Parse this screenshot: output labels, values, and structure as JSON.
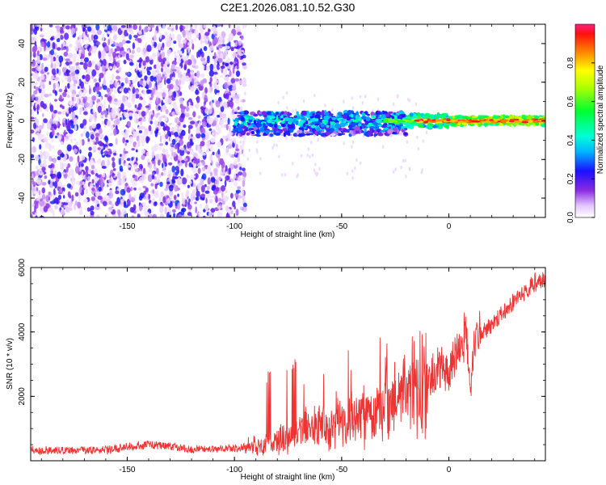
{
  "title": "C2E1.2026.081.10.52.G30",
  "chart_data": [
    {
      "type": "heatmap",
      "name": "spectrogram",
      "xlabel": "Height of straight line (km)",
      "ylabel": "Frequency (Hz)",
      "xlim": [
        -195,
        45
      ],
      "ylim": [
        -50,
        50
      ],
      "x_ticks": [
        -150,
        -100,
        -50,
        0
      ],
      "y_ticks": [
        -40,
        -20,
        0,
        20,
        40
      ],
      "colorbar": {
        "label": "Normalized spectral amplitude",
        "range": [
          0,
          1
        ],
        "ticks": [
          0.0,
          0.2,
          0.4,
          0.6,
          0.8
        ]
      },
      "regions": [
        {
          "x_range": [
            -195,
            -95
          ],
          "freq_range": [
            -50,
            50
          ],
          "description_amplitude": "low (0.05-0.2), scattered noise"
        },
        {
          "x_range": [
            -100,
            -15
          ],
          "freq_range": [
            -8,
            5
          ],
          "description_amplitude": "0.2-0.5 clustered signal"
        },
        {
          "x_range": [
            -15,
            45
          ],
          "freq_range": [
            -3,
            3
          ],
          "description_amplitude": "0.6-1.0 strong tone near 0 Hz"
        }
      ]
    },
    {
      "type": "line",
      "name": "snr",
      "xlabel": "Height of straight line (km)",
      "ylabel": "SNR (10 * v/v)",
      "xlim": [
        -195,
        45
      ],
      "ylim": [
        0,
        6000
      ],
      "x_ticks": [
        -150,
        -100,
        -50,
        0
      ],
      "y_ticks": [
        2000,
        4000,
        6000
      ],
      "color": "#ee3333",
      "series_points": {
        "x": [
          -195,
          -160,
          -140,
          -120,
          -100,
          -85,
          -75,
          -60,
          -50,
          -40,
          -30,
          -20,
          -15,
          -12,
          -10,
          -5,
          0,
          5,
          8,
          10,
          12,
          20,
          30,
          40,
          45
        ],
        "y": [
          300,
          320,
          500,
          350,
          380,
          450,
          700,
          1100,
          1150,
          1300,
          1500,
          1900,
          2200,
          1800,
          2600,
          2700,
          2800,
          3400,
          3900,
          2000,
          3800,
          4200,
          4900,
          5500,
          5600
        ]
      }
    }
  ]
}
